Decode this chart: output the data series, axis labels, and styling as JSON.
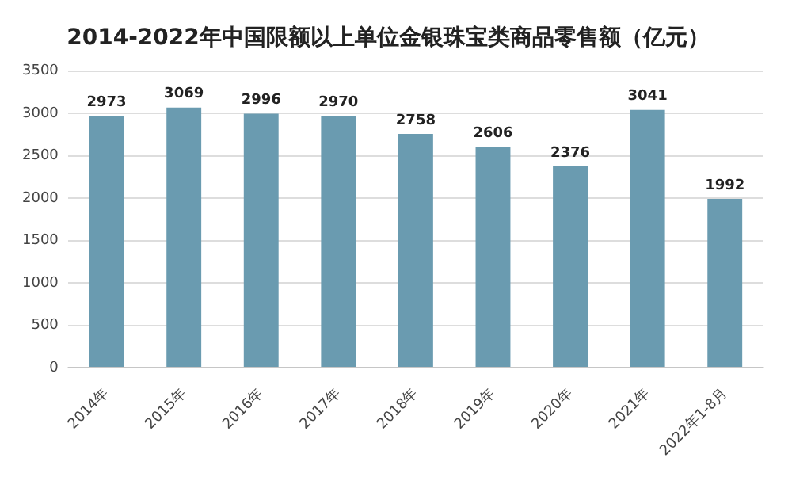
{
  "chart_data": {
    "type": "bar",
    "title": "2014-2022年中国限额以上单位金银珠宝类商品零售额（亿元）",
    "categories": [
      "2014年",
      "2015年",
      "2016年",
      "2017年",
      "2018年",
      "2019年",
      "2020年",
      "2021年",
      "2022年1-8月"
    ],
    "values": [
      2973,
      3069,
      2996,
      2970,
      2758,
      2606,
      2376,
      3041,
      1992
    ],
    "color": "#6a9bb0",
    "ylim": [
      0,
      3500
    ],
    "yticks": [
      0,
      500,
      1000,
      1500,
      2000,
      2500,
      3000,
      3500
    ],
    "grid": "y",
    "data_labels": true
  }
}
